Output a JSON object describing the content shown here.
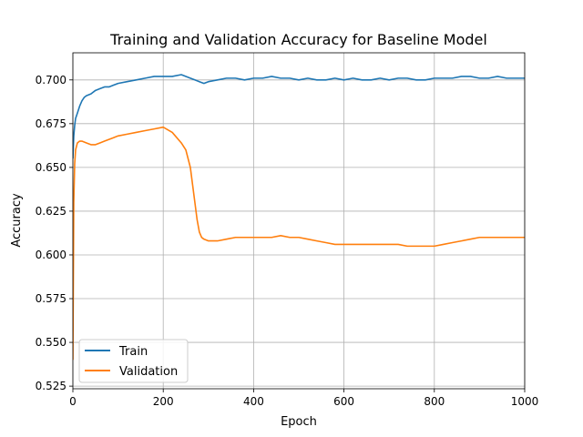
{
  "chart_data": {
    "type": "line",
    "title": "Training and Validation Accuracy for Baseline Model",
    "xlabel": "Epoch",
    "ylabel": "Accuracy",
    "xlim": [
      0,
      1000
    ],
    "ylim": [
      0.5235,
      0.7155
    ],
    "x_ticks": [
      0,
      200,
      400,
      600,
      800,
      1000
    ],
    "y_ticks": [
      0.525,
      0.55,
      0.575,
      0.6,
      0.625,
      0.65,
      0.675,
      0.7
    ],
    "x_tick_labels": [
      "0",
      "200",
      "400",
      "600",
      "800",
      "1000"
    ],
    "y_tick_labels": [
      "0.525",
      "0.550",
      "0.575",
      "0.600",
      "0.625",
      "0.650",
      "0.675",
      "0.700"
    ],
    "grid": true,
    "legend_position": "lower-left",
    "series": [
      {
        "name": "Train",
        "color": "#1f77b4",
        "points": [
          [
            0,
            0.655
          ],
          [
            2,
            0.668
          ],
          [
            4,
            0.674
          ],
          [
            6,
            0.678
          ],
          [
            10,
            0.681
          ],
          [
            15,
            0.685
          ],
          [
            20,
            0.688
          ],
          [
            25,
            0.69
          ],
          [
            30,
            0.691
          ],
          [
            40,
            0.692
          ],
          [
            50,
            0.694
          ],
          [
            60,
            0.695
          ],
          [
            70,
            0.696
          ],
          [
            80,
            0.696
          ],
          [
            90,
            0.697
          ],
          [
            100,
            0.698
          ],
          [
            120,
            0.699
          ],
          [
            140,
            0.7
          ],
          [
            160,
            0.701
          ],
          [
            180,
            0.702
          ],
          [
            200,
            0.702
          ],
          [
            220,
            0.702
          ],
          [
            240,
            0.703
          ],
          [
            260,
            0.701
          ],
          [
            270,
            0.7
          ],
          [
            280,
            0.699
          ],
          [
            290,
            0.698
          ],
          [
            300,
            0.699
          ],
          [
            320,
            0.7
          ],
          [
            340,
            0.701
          ],
          [
            360,
            0.701
          ],
          [
            380,
            0.7
          ],
          [
            400,
            0.701
          ],
          [
            420,
            0.701
          ],
          [
            440,
            0.702
          ],
          [
            460,
            0.701
          ],
          [
            480,
            0.701
          ],
          [
            500,
            0.7
          ],
          [
            520,
            0.701
          ],
          [
            540,
            0.7
          ],
          [
            560,
            0.7
          ],
          [
            580,
            0.701
          ],
          [
            600,
            0.7
          ],
          [
            620,
            0.701
          ],
          [
            640,
            0.7
          ],
          [
            660,
            0.7
          ],
          [
            680,
            0.701
          ],
          [
            700,
            0.7
          ],
          [
            720,
            0.701
          ],
          [
            740,
            0.701
          ],
          [
            760,
            0.7
          ],
          [
            780,
            0.7
          ],
          [
            800,
            0.701
          ],
          [
            820,
            0.701
          ],
          [
            840,
            0.701
          ],
          [
            860,
            0.702
          ],
          [
            880,
            0.702
          ],
          [
            900,
            0.701
          ],
          [
            920,
            0.701
          ],
          [
            940,
            0.702
          ],
          [
            960,
            0.701
          ],
          [
            980,
            0.701
          ],
          [
            1000,
            0.701
          ]
        ]
      },
      {
        "name": "Validation",
        "color": "#ff7f0e",
        "points": [
          [
            0,
            0.54
          ],
          [
            2,
            0.63
          ],
          [
            4,
            0.652
          ],
          [
            6,
            0.66
          ],
          [
            10,
            0.664
          ],
          [
            15,
            0.665
          ],
          [
            20,
            0.665
          ],
          [
            30,
            0.664
          ],
          [
            40,
            0.663
          ],
          [
            50,
            0.663
          ],
          [
            60,
            0.664
          ],
          [
            70,
            0.665
          ],
          [
            80,
            0.666
          ],
          [
            90,
            0.667
          ],
          [
            100,
            0.668
          ],
          [
            120,
            0.669
          ],
          [
            140,
            0.67
          ],
          [
            160,
            0.671
          ],
          [
            180,
            0.672
          ],
          [
            200,
            0.673
          ],
          [
            220,
            0.67
          ],
          [
            240,
            0.664
          ],
          [
            250,
            0.66
          ],
          [
            260,
            0.65
          ],
          [
            265,
            0.64
          ],
          [
            270,
            0.63
          ],
          [
            275,
            0.62
          ],
          [
            280,
            0.613
          ],
          [
            285,
            0.61
          ],
          [
            290,
            0.609
          ],
          [
            300,
            0.608
          ],
          [
            320,
            0.608
          ],
          [
            340,
            0.609
          ],
          [
            360,
            0.61
          ],
          [
            380,
            0.61
          ],
          [
            400,
            0.61
          ],
          [
            420,
            0.61
          ],
          [
            440,
            0.61
          ],
          [
            460,
            0.611
          ],
          [
            480,
            0.61
          ],
          [
            500,
            0.61
          ],
          [
            520,
            0.609
          ],
          [
            540,
            0.608
          ],
          [
            560,
            0.607
          ],
          [
            580,
            0.606
          ],
          [
            600,
            0.606
          ],
          [
            620,
            0.606
          ],
          [
            640,
            0.606
          ],
          [
            660,
            0.606
          ],
          [
            680,
            0.606
          ],
          [
            700,
            0.606
          ],
          [
            720,
            0.606
          ],
          [
            740,
            0.605
          ],
          [
            760,
            0.605
          ],
          [
            780,
            0.605
          ],
          [
            800,
            0.605
          ],
          [
            820,
            0.606
          ],
          [
            840,
            0.607
          ],
          [
            860,
            0.608
          ],
          [
            880,
            0.609
          ],
          [
            900,
            0.61
          ],
          [
            920,
            0.61
          ],
          [
            940,
            0.61
          ],
          [
            960,
            0.61
          ],
          [
            980,
            0.61
          ],
          [
            1000,
            0.61
          ]
        ]
      }
    ]
  }
}
